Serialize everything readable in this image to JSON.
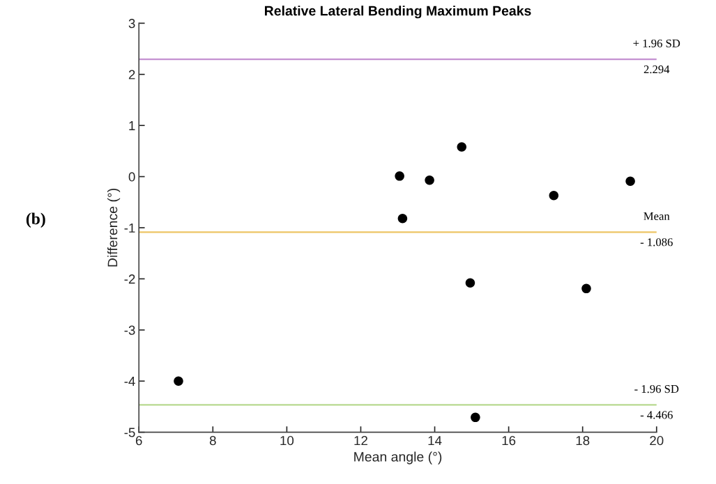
{
  "chart_data": {
    "type": "scatter",
    "title": "Relative Lateral Bending Maximum Peaks",
    "xlabel": "Mean angle (°)",
    "ylabel": "Difference (°)",
    "x": [
      7.07,
      13.05,
      13.13,
      13.86,
      14.73,
      14.96,
      15.1,
      17.22,
      18.1,
      19.29
    ],
    "values": [
      -4.0,
      0.01,
      -0.82,
      -0.07,
      0.58,
      -2.08,
      -4.71,
      -0.37,
      -2.19,
      -0.09
    ],
    "color": "#000000",
    "marker": "circle",
    "xlim": [
      6,
      20
    ],
    "xticks": [
      6,
      8,
      10,
      12,
      14,
      16,
      18,
      20
    ],
    "ylim": [
      -5,
      3
    ],
    "yticks": [
      -5,
      -4,
      -3,
      -2,
      -1,
      0,
      1,
      2,
      3
    ],
    "grid": false,
    "ref_lines": [
      {
        "axis": "y",
        "value": 2.294,
        "label": "+ 1.96 SD\n2.294",
        "color": "#c490d1"
      },
      {
        "axis": "y",
        "value": -1.086,
        "label": "Mean\n- 1.086",
        "color": "#edc565"
      },
      {
        "axis": "y",
        "value": -4.466,
        "label": "- 1.96 SD\n- 4.466",
        "color": "#b7d98f"
      }
    ],
    "annotations": [
      "(b)"
    ]
  }
}
